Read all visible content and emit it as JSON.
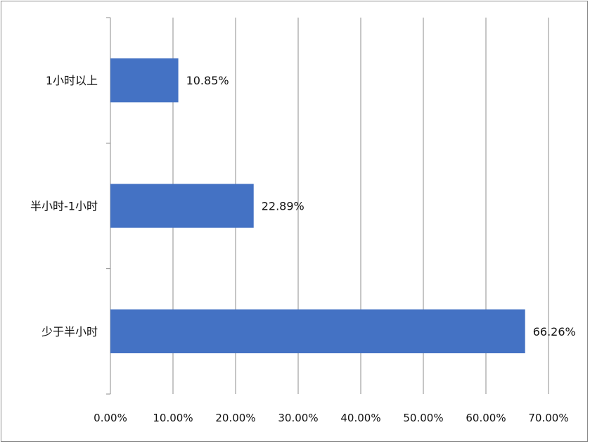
{
  "chart_data": {
    "type": "bar",
    "orientation": "horizontal",
    "categories": [
      "1小时以上",
      "半小时-1小时",
      "少于半小时"
    ],
    "values": [
      10.85,
      22.89,
      66.26
    ],
    "data_labels": [
      "10.85%",
      "22.89%",
      "66.26%"
    ],
    "xlim": [
      0,
      70
    ],
    "x_ticks": [
      "0.00%",
      "10.00%",
      "20.00%",
      "30.00%",
      "40.00%",
      "50.00%",
      "60.00%",
      "70.00%"
    ],
    "grid": "vertical",
    "legend": "none",
    "title": "",
    "xlabel": "",
    "ylabel": "",
    "bar_color": "#4472C4",
    "grid_color": "#8c8c8c"
  }
}
